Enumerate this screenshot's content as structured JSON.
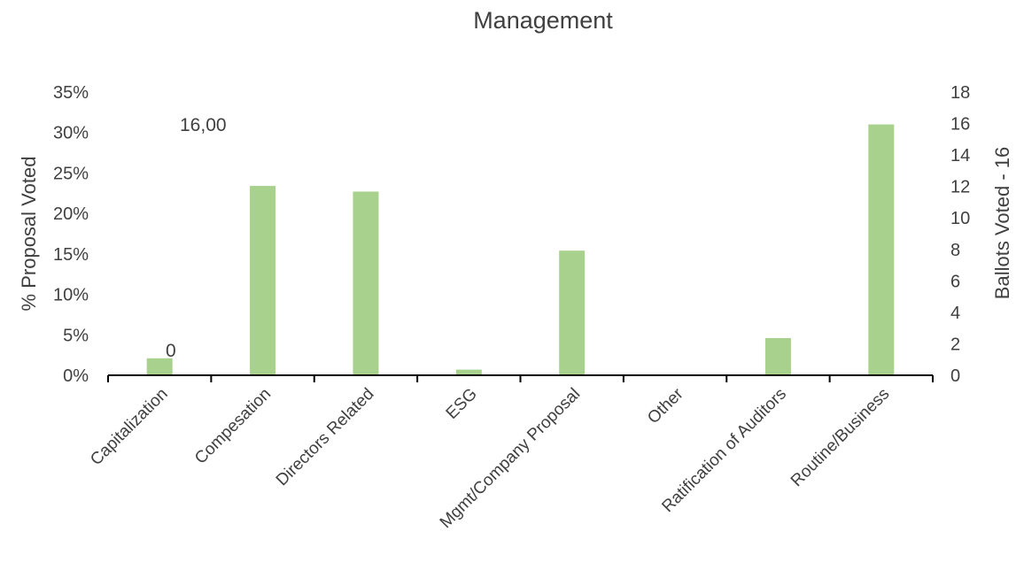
{
  "chart_data": {
    "type": "bar",
    "title": "Management",
    "categories": [
      "Capitalization",
      "Compesation",
      "Directors Related",
      "ESG",
      "Mgmt/Company Proposal",
      "Other",
      "Ratification of Auditors",
      "Routine/Business"
    ],
    "series": [
      {
        "values": [
          2.1,
          23.4,
          22.7,
          0.7,
          15.4,
          0.0,
          4.6,
          31.0
        ]
      }
    ],
    "ylabel": "% Proposal Voted",
    "ylabel_right": "Ballots Voted - 16",
    "ylim": [
      0,
      35
    ],
    "yticks": [
      "0%",
      "5%",
      "10%",
      "15%",
      "20%",
      "25%",
      "30%",
      "35%"
    ],
    "ylim_right": [
      0,
      18
    ],
    "yticks_right": [
      "0",
      "2",
      "4",
      "6",
      "8",
      "10",
      "12",
      "14",
      "16",
      "18"
    ],
    "annotations": [
      "16,00",
      "0"
    ],
    "bar_color": "#a9d18e",
    "grid": false,
    "legend": "none"
  }
}
